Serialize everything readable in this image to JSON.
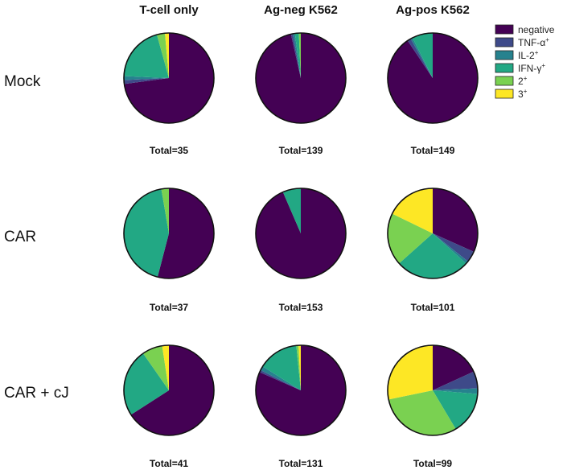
{
  "chart_data": {
    "type": "pie",
    "columns": [
      "T-cell only",
      "Ag-neg K562",
      "Ag-pos K562"
    ],
    "rows": [
      "Mock",
      "CAR",
      "CAR + cJ"
    ],
    "legend": {
      "placement": "top-right",
      "entries": [
        {
          "base": "negative",
          "sup": "",
          "color": "#440154"
        },
        {
          "base": "TNF-α",
          "sup": "+",
          "color": "#3e4a89"
        },
        {
          "base": "IL-2",
          "sup": "+",
          "color": "#26828e"
        },
        {
          "base": "IFN-γ",
          "sup": "+",
          "color": "#22a884"
        },
        {
          "base": "2",
          "sup": "+",
          "color": "#7ad151"
        },
        {
          "base": "3",
          "sup": "+",
          "color": "#fde725"
        }
      ]
    },
    "slice_order": "clockwise from 12 o'clock, starting with 'negative'",
    "pies": [
      {
        "row": "Mock",
        "column": "T-cell only",
        "total_label": "Total=35",
        "fractions": [
          0.729,
          0.014,
          0.014,
          0.2,
          0.029,
          0.014
        ]
      },
      {
        "row": "Mock",
        "column": "Ag-neg K562",
        "total_label": "Total=139",
        "fractions": [
          0.964,
          0.007,
          0.007,
          0.014,
          0.007,
          0.0
        ]
      },
      {
        "row": "Mock",
        "column": "Ag-pos K562",
        "total_label": "Total=149",
        "fractions": [
          0.906,
          0.013,
          0.007,
          0.074,
          0.0,
          0.0
        ]
      },
      {
        "row": "CAR",
        "column": "T-cell only",
        "total_label": "Total=37",
        "fractions": [
          0.54,
          0.0,
          0.0,
          0.432,
          0.027,
          0.0
        ]
      },
      {
        "row": "CAR",
        "column": "Ag-neg K562",
        "total_label": "Total=153",
        "fractions": [
          0.935,
          0.0,
          0.0,
          0.065,
          0.0,
          0.0
        ]
      },
      {
        "row": "CAR",
        "column": "Ag-pos K562",
        "total_label": "Total=101",
        "fractions": [
          0.317,
          0.04,
          0.01,
          0.267,
          0.188,
          0.178
        ]
      },
      {
        "row": "CAR + cJ",
        "column": "T-cell only",
        "total_label": "Total=41",
        "fractions": [
          0.659,
          0.0,
          0.0,
          0.244,
          0.073,
          0.024
        ]
      },
      {
        "row": "CAR + cJ",
        "column": "Ag-neg K562",
        "total_label": "Total=131",
        "fractions": [
          0.817,
          0.008,
          0.015,
          0.145,
          0.008,
          0.008
        ]
      },
      {
        "row": "CAR + cJ",
        "column": "Ag-pos K562",
        "total_label": "Total=99",
        "fractions": [
          0.182,
          0.061,
          0.02,
          0.152,
          0.303,
          0.283
        ]
      }
    ]
  }
}
